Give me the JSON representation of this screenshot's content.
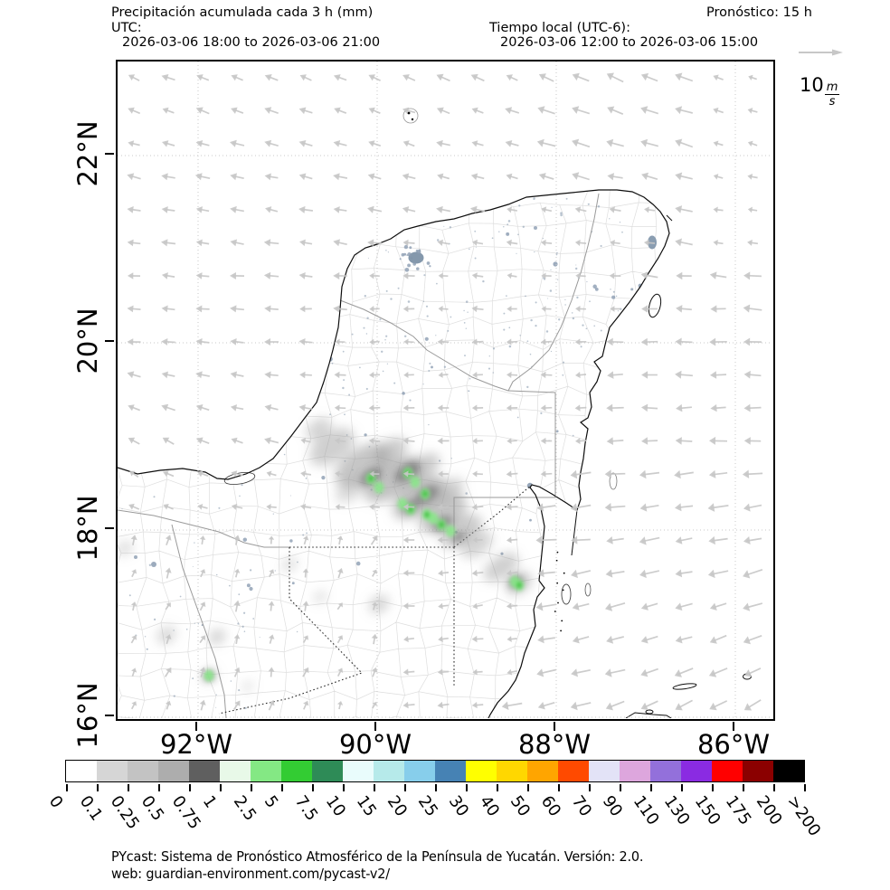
{
  "header": {
    "title": "Precipitación acumulada cada 3 h (mm)",
    "utc_label": "UTC:",
    "utc_range": "2026-03-06 18:00 to 2026-03-06 21:00",
    "local_label": "Tiempo local (UTC-6):",
    "local_range": "2026-03-06 12:00 to 2026-03-06 15:00",
    "forecast": "Pronóstico: 15 h"
  },
  "quiver_key": {
    "value": "10",
    "numerator": "m",
    "denominator": "s"
  },
  "axes": {
    "lat_ticks": [
      "22°N",
      "20°N",
      "18°N",
      "16°N"
    ],
    "lon_ticks": [
      "92°W",
      "90°W",
      "88°W",
      "86°W"
    ]
  },
  "colorbar": {
    "tick_labels": [
      "0",
      "0.1",
      "0.25",
      "0.5",
      "0.75",
      "1",
      "2.5",
      "5",
      "7.5",
      "10",
      "15",
      "20",
      "25",
      "30",
      "40",
      "50",
      "60",
      "70",
      "90",
      "110",
      "130",
      "150",
      "175",
      "200",
      ">200"
    ],
    "segment_colors": [
      "#ffffff",
      "#d6d6d6",
      "#c3c3c3",
      "#adadad",
      "#5f5f5f",
      "#e8f9e8",
      "#84e884",
      "#33cc33",
      "#2e8b57",
      "#e9fcfc",
      "#b6eaea",
      "#87ceeb",
      "#4682b4",
      "#ffff00",
      "#ffd700",
      "#ffa500",
      "#ff4a00",
      "#e3e3f7",
      "#dda6dd",
      "#9370db",
      "#8a2be2",
      "#ff0000",
      "#8b0000",
      "#000000"
    ]
  },
  "footer": {
    "line1": "PYcast: Sistema de Pronóstico Atmosférico de la Península de Yucatán. Versión: 2.0.",
    "line2": "web: guardian-environment.com/pycast-v2/"
  },
  "map_style": {
    "wind_arrow_color": "#c7c7c7",
    "coastline_color": "#0d0d0d",
    "grid_color": "#c9c9c9",
    "border_color": "#2a2a2a",
    "municipal_color": "#c8c8c8",
    "state_color": "#9a9a9a",
    "urban_color": "#8b9cb1",
    "precip_gray": "#979797",
    "precip_gray_dark": "#5e5e5e",
    "precip_green_light": "#86e986",
    "precip_green": "#2ebb2e"
  }
}
